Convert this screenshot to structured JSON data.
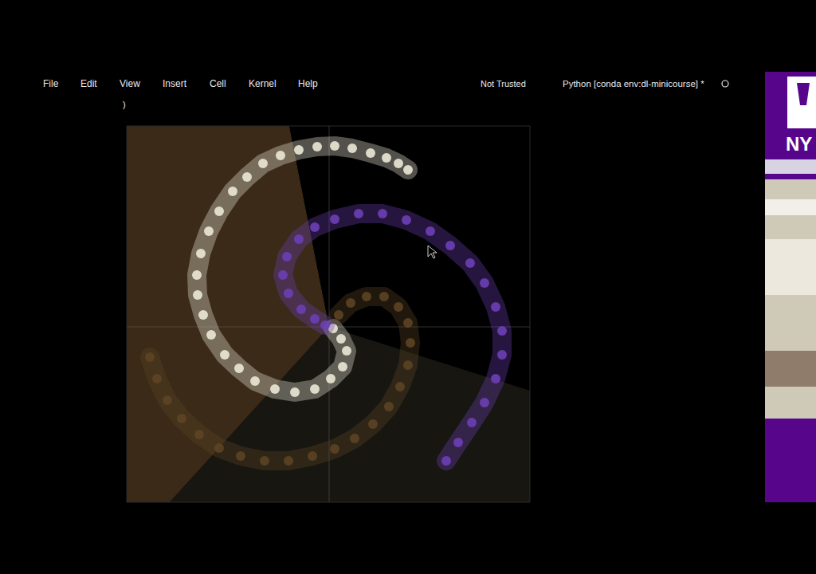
{
  "menu_bar": {
    "items": [
      "File",
      "Edit",
      "View",
      "Insert",
      "Cell",
      "Kernel",
      "Help"
    ],
    "trust": "Not Trusted",
    "kernel": "Python [conda env:dl-minicourse] *"
  },
  "cell_prompt": ")",
  "logo": {
    "text": "NY"
  },
  "chart_data": {
    "type": "scatter",
    "xlim": [
      -1.27,
      1.26
    ],
    "ylim": [
      -1.1,
      1.26
    ],
    "xticks": [
      0
    ],
    "yticks": [
      0
    ],
    "grid": true,
    "tick_labels": false,
    "marker": "circle",
    "regions": [
      {
        "color": "#3b2a18",
        "points": [
          [
            0,
            0
          ],
          [
            -0.25,
            1.26
          ],
          [
            -1.27,
            1.26
          ],
          [
            -1.27,
            -1.1
          ],
          [
            -1.0,
            -1.1
          ]
        ]
      },
      {
        "color": "#000000",
        "points": [
          [
            0,
            0
          ],
          [
            -0.25,
            1.26
          ],
          [
            1.26,
            1.26
          ],
          [
            1.26,
            -0.4
          ]
        ]
      },
      {
        "color": "#171611",
        "points": [
          [
            0,
            0
          ],
          [
            1.26,
            -0.4
          ],
          [
            1.26,
            -1.1
          ],
          [
            -1.0,
            -1.1
          ]
        ]
      }
    ],
    "series": [
      {
        "color": "#ece8d6",
        "x": [
          0.025,
          0.075,
          0.11,
          0.085,
          0.01,
          -0.09,
          -0.215,
          -0.34,
          -0.465,
          -0.565,
          -0.655,
          -0.74,
          -0.79,
          -0.825,
          -0.83,
          -0.805,
          -0.755,
          -0.69,
          -0.605,
          -0.515,
          -0.415,
          -0.305,
          -0.19,
          -0.075,
          0.035,
          0.145,
          0.26,
          0.36,
          0.435,
          0.495
        ],
        "values": [
          -0.01,
          -0.075,
          -0.15,
          -0.25,
          -0.325,
          -0.39,
          -0.41,
          -0.39,
          -0.34,
          -0.26,
          -0.175,
          -0.05,
          0.075,
          0.2,
          0.325,
          0.46,
          0.6,
          0.725,
          0.85,
          0.94,
          1.025,
          1.075,
          1.11,
          1.13,
          1.135,
          1.12,
          1.09,
          1.06,
          1.025,
          0.985
        ]
      },
      {
        "color": "#6c3fb5",
        "x": [
          -0.025,
          -0.09,
          -0.175,
          -0.255,
          -0.29,
          -0.265,
          -0.19,
          -0.09,
          0.035,
          0.185,
          0.335,
          0.485,
          0.635,
          0.76,
          0.885,
          0.975,
          1.045,
          1.085,
          1.085,
          1.045,
          0.975,
          0.895,
          0.81,
          0.735
        ],
        "values": [
          0.01,
          0.05,
          0.11,
          0.21,
          0.325,
          0.44,
          0.55,
          0.625,
          0.675,
          0.71,
          0.71,
          0.67,
          0.6,
          0.51,
          0.4,
          0.275,
          0.125,
          -0.025,
          -0.175,
          -0.325,
          -0.475,
          -0.6,
          -0.725,
          -0.84
        ]
      },
      {
        "color": "#5c4424",
        "x": [
          0.06,
          0.135,
          0.235,
          0.345,
          0.435,
          0.495,
          0.51,
          0.495,
          0.445,
          0.375,
          0.275,
          0.16,
          0.035,
          -0.105,
          -0.255,
          -0.405,
          -0.555,
          -0.69,
          -0.815,
          -0.925,
          -1.015,
          -1.08,
          -1.125
        ],
        "values": [
          0.075,
          0.15,
          0.19,
          0.19,
          0.125,
          0.025,
          -0.1,
          -0.24,
          -0.375,
          -0.5,
          -0.61,
          -0.7,
          -0.765,
          -0.81,
          -0.84,
          -0.84,
          -0.81,
          -0.76,
          -0.675,
          -0.575,
          -0.46,
          -0.325,
          -0.19
        ]
      }
    ]
  }
}
